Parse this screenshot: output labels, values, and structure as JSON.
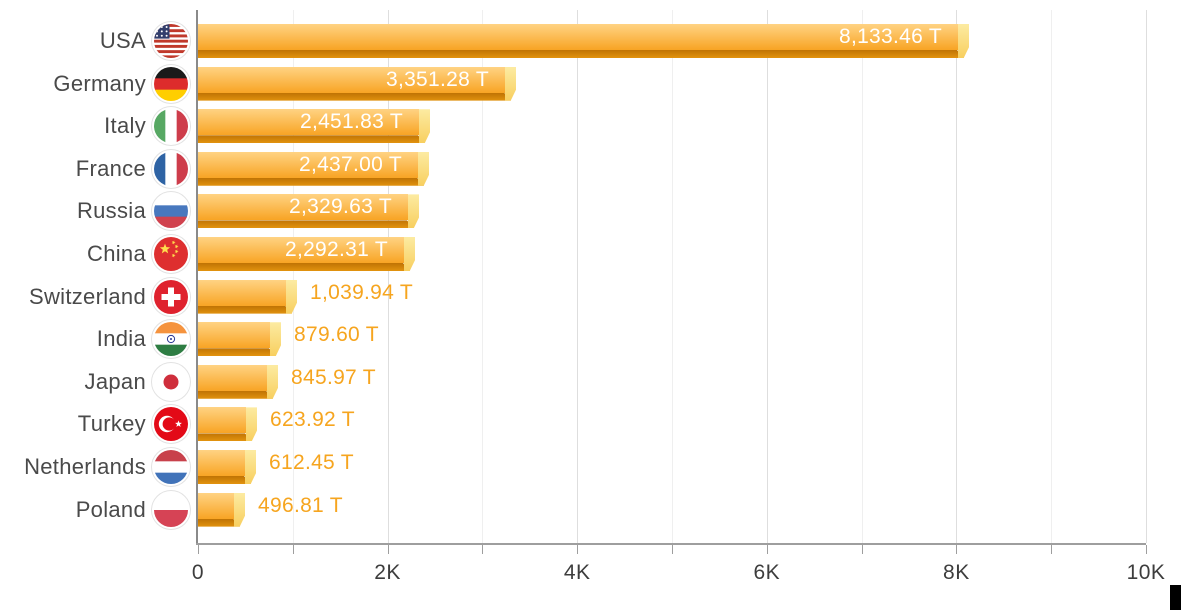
{
  "chart_data": {
    "type": "bar",
    "orientation": "horizontal",
    "title": "",
    "unit": "T",
    "categories": [
      "USA",
      "Germany",
      "Italy",
      "France",
      "Russia",
      "China",
      "Switzerland",
      "India",
      "Japan",
      "Turkey",
      "Netherlands",
      "Poland"
    ],
    "values": [
      8133.46,
      3351.28,
      2451.83,
      2437.0,
      2329.63,
      2292.31,
      1039.94,
      879.6,
      845.97,
      623.92,
      612.45,
      496.81
    ],
    "value_labels": [
      "8,133.46 T",
      "3,351.28 T",
      "2,451.83 T",
      "2,437.00 T",
      "2,329.63 T",
      "2,292.31 T",
      "1,039.94 T",
      "879.60 T",
      "845.97 T",
      "623.92 T",
      "612.45 T",
      "496.81 T"
    ],
    "label_inside": [
      true,
      true,
      true,
      true,
      true,
      true,
      false,
      false,
      false,
      false,
      false,
      false
    ],
    "flag_icons": [
      "flag-usa-icon",
      "flag-germany-icon",
      "flag-italy-icon",
      "flag-france-icon",
      "flag-russia-icon",
      "flag-china-icon",
      "flag-switzerland-icon",
      "flag-india-icon",
      "flag-japan-icon",
      "flag-turkey-icon",
      "flag-netherlands-icon",
      "flag-poland-icon"
    ],
    "x_tick_labels": [
      "0",
      "2K",
      "4K",
      "6K",
      "8K",
      "10K"
    ],
    "xlim": [
      0,
      10000
    ],
    "x_minor_step": 1000,
    "grid": "vertical",
    "legend": "none",
    "colors": {
      "bar_gradient_top": "#FFD383",
      "bar_gradient_bottom": "#F8A424",
      "bar_cap_top": "#FCEBA2",
      "bar_cap_bottom": "#F8CF5F",
      "bar_shadow_top": "#BF7304",
      "bar_shadow_bottom": "#E2930E",
      "value_label_inside": "#FFFFFF",
      "value_label_outside": "#F6A51F",
      "country_label": "#4A4A4A",
      "axis": "#9E9E9E",
      "gridline_minor": "#EFEFEF",
      "gridline_major": "#DEDEDE"
    }
  }
}
